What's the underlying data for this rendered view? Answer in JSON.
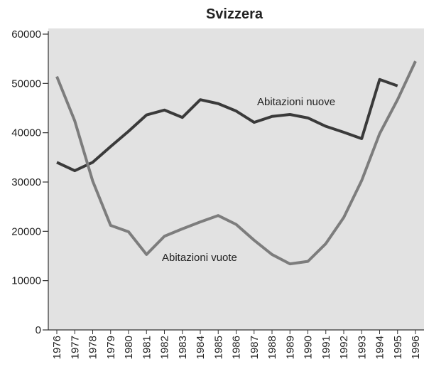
{
  "chart_data": {
    "type": "line",
    "title": "Svizzera",
    "categories": [
      "1976",
      "1977",
      "1978",
      "1979",
      "1980",
      "1981",
      "1982",
      "1983",
      "1984",
      "1985",
      "1986",
      "1987",
      "1988",
      "1989",
      "1990",
      "1991",
      "1992",
      "1993",
      "1994",
      "1995",
      "1996"
    ],
    "series": [
      {
        "name": "Abitazioni nuove",
        "color": "#3a3a3a",
        "values": [
          34000,
          32300,
          34000,
          37200,
          40300,
          43600,
          44600,
          43100,
          46700,
          45900,
          44400,
          42100,
          43300,
          43700,
          43000,
          41300,
          40100,
          38800,
          50800,
          49500,
          null
        ]
      },
      {
        "name": "Abitazioni vuote",
        "color": "#7d7d7d",
        "values": [
          51400,
          42400,
          30200,
          21200,
          19900,
          15300,
          19000,
          20500,
          21900,
          23200,
          21400,
          18200,
          15300,
          13400,
          13900,
          17500,
          22800,
          30300,
          39800,
          46700,
          54500
        ]
      }
    ],
    "ylim": [
      0,
      60000
    ],
    "yticks": [
      0,
      10000,
      20000,
      30000,
      40000,
      50000,
      60000
    ]
  }
}
